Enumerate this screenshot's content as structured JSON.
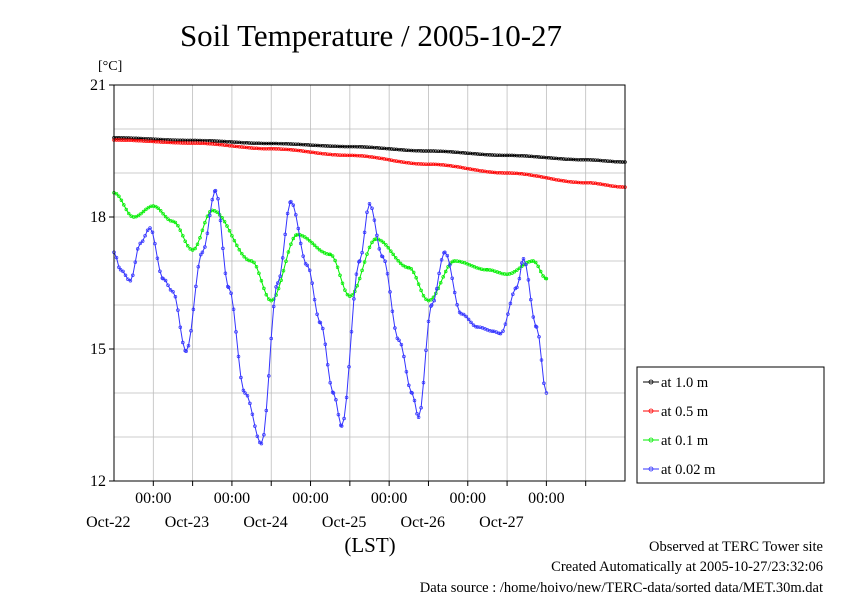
{
  "chart_data": {
    "type": "line",
    "title": "Soil Temperature / 2005-10-27",
    "ylabel": "[°C]",
    "xlabel": "(LST)",
    "ylim": [
      12,
      21
    ],
    "xlim": [
      "2005-10-21 12:00",
      "2005-10-28 00:00"
    ],
    "y_ticks": [
      {
        "value": 12,
        "label": "12"
      },
      {
        "value": 15,
        "label": "15"
      },
      {
        "value": 18,
        "label": "18"
      },
      {
        "value": 21,
        "label": "21"
      }
    ],
    "x_ticks": [
      {
        "time": "2005-10-22 00:00",
        "time_label": "00:00",
        "date_label": "Oct-22"
      },
      {
        "time": "2005-10-23 00:00",
        "time_label": "00:00",
        "date_label": "Oct-23"
      },
      {
        "time": "2005-10-24 00:00",
        "time_label": "00:00",
        "date_label": "Oct-24"
      },
      {
        "time": "2005-10-25 00:00",
        "time_label": "00:00",
        "date_label": "Oct-25"
      },
      {
        "time": "2005-10-26 00:00",
        "time_label": "00:00",
        "date_label": "Oct-26"
      },
      {
        "time": "2005-10-27 00:00",
        "time_label": "00:00",
        "date_label": "Oct-27"
      }
    ],
    "grid": true,
    "legend_position": "bottom-right, outside plot",
    "series": [
      {
        "name": "at 1.0 m",
        "color": "#000000",
        "points": [
          [
            "2005-10-21 12:00",
            19.8
          ],
          [
            "2005-10-22 12:00",
            19.74
          ],
          [
            "2005-10-23 12:00",
            19.67
          ],
          [
            "2005-10-24 12:00",
            19.6
          ],
          [
            "2005-10-25 12:00",
            19.5
          ],
          [
            "2005-10-26 12:00",
            19.4
          ],
          [
            "2005-10-27 12:00",
            19.3
          ],
          [
            "2005-10-28 00:00",
            19.25
          ]
        ]
      },
      {
        "name": "at 0.5 m",
        "color": "#ff0000",
        "points": [
          [
            "2005-10-21 12:00",
            19.75
          ],
          [
            "2005-10-22 12:00",
            19.68
          ],
          [
            "2005-10-23 12:00",
            19.55
          ],
          [
            "2005-10-24 12:00",
            19.4
          ],
          [
            "2005-10-25 12:00",
            19.2
          ],
          [
            "2005-10-26 12:00",
            19.0
          ],
          [
            "2005-10-27 12:00",
            18.78
          ],
          [
            "2005-10-28 00:00",
            18.68
          ]
        ]
      },
      {
        "name": "at 0.1 m",
        "color": "#00ee00",
        "points": [
          [
            "2005-10-21 12:00",
            18.55
          ],
          [
            "2005-10-21 18:00",
            18.0
          ],
          [
            "2005-10-22 00:00",
            18.25
          ],
          [
            "2005-10-22 06:00",
            17.9
          ],
          [
            "2005-10-22 12:00",
            17.25
          ],
          [
            "2005-10-22 18:00",
            18.15
          ],
          [
            "2005-10-23 06:00",
            17.0
          ],
          [
            "2005-10-23 12:00",
            16.1
          ],
          [
            "2005-10-23 20:00",
            17.6
          ],
          [
            "2005-10-24 06:00",
            17.15
          ],
          [
            "2005-10-24 12:00",
            16.2
          ],
          [
            "2005-10-24 20:00",
            17.5
          ],
          [
            "2005-10-25 06:00",
            16.85
          ],
          [
            "2005-10-25 12:00",
            16.1
          ],
          [
            "2005-10-25 20:00",
            17.0
          ],
          [
            "2005-10-26 06:00",
            16.8
          ],
          [
            "2005-10-26 12:00",
            16.7
          ],
          [
            "2005-10-26 20:00",
            17.0
          ],
          [
            "2005-10-27 00:00",
            16.6
          ]
        ]
      },
      {
        "name": "at 0.02 m",
        "color": "#3333ff",
        "points": [
          [
            "2005-10-21 12:00",
            17.2
          ],
          [
            "2005-10-21 14:00",
            16.8
          ],
          [
            "2005-10-21 17:00",
            16.55
          ],
          [
            "2005-10-21 20:00",
            17.4
          ],
          [
            "2005-10-21 23:00",
            17.75
          ],
          [
            "2005-10-22 03:00",
            16.6
          ],
          [
            "2005-10-22 06:00",
            16.3
          ],
          [
            "2005-10-22 10:00",
            14.95
          ],
          [
            "2005-10-22 15:00",
            17.2
          ],
          [
            "2005-10-22 19:00",
            18.6
          ],
          [
            "2005-10-22 23:00",
            16.4
          ],
          [
            "2005-10-23 04:00",
            14.0
          ],
          [
            "2005-10-23 09:00",
            12.85
          ],
          [
            "2005-10-23 14:00",
            16.5
          ],
          [
            "2005-10-23 18:00",
            18.35
          ],
          [
            "2005-10-23 23:00",
            16.9
          ],
          [
            "2005-10-24 03:00",
            15.6
          ],
          [
            "2005-10-24 07:00",
            14.0
          ],
          [
            "2005-10-24 09:30",
            13.25
          ],
          [
            "2005-10-24 15:00",
            17.0
          ],
          [
            "2005-10-24 18:00",
            18.3
          ],
          [
            "2005-10-24 22:00",
            17.1
          ],
          [
            "2005-10-25 03:00",
            15.2
          ],
          [
            "2005-10-25 07:00",
            14.0
          ],
          [
            "2005-10-25 09:00",
            13.45
          ],
          [
            "2005-10-25 13:00",
            16.0
          ],
          [
            "2005-10-25 17:00",
            17.2
          ],
          [
            "2005-10-25 22:00",
            15.8
          ],
          [
            "2005-10-26 03:00",
            15.5
          ],
          [
            "2005-10-26 08:00",
            15.4
          ],
          [
            "2005-10-26 10:00",
            15.35
          ],
          [
            "2005-10-26 15:00",
            16.4
          ],
          [
            "2005-10-26 17:00",
            17.05
          ],
          [
            "2005-10-26 21:00",
            15.5
          ],
          [
            "2005-10-27 00:00",
            14.0
          ]
        ]
      }
    ]
  },
  "footer": {
    "line1": "Observed at TERC Tower site",
    "line2": "Created Automatically at 2005-10-27/23:32:06",
    "line3": "Data source : /home/hoivo/new/TERC-data/sorted  data/MET.30m.dat"
  }
}
